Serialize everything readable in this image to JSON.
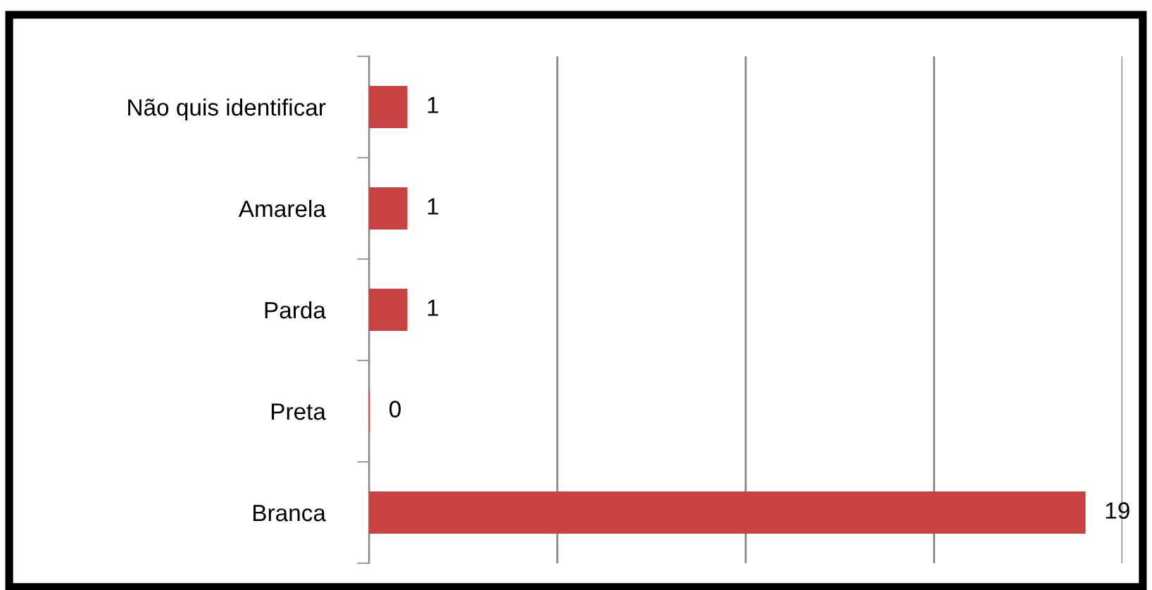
{
  "chart_data": {
    "type": "bar",
    "orientation": "horizontal",
    "categories": [
      "Não quis identificar",
      "Amarela",
      "Parda",
      "Preta",
      "Branca"
    ],
    "values": [
      1,
      1,
      1,
      0,
      19
    ],
    "color": "#c84343",
    "xlim": [
      0,
      20
    ],
    "xticks": [
      {
        "value": 0,
        "label": null
      },
      {
        "value": 5,
        "label": null
      },
      {
        "value": 10,
        "label": null
      },
      {
        "value": 15,
        "label": null
      },
      {
        "value": 20,
        "label": null
      }
    ],
    "tick_labels": "y",
    "grid": "x",
    "data_labels": true,
    "legend": false
  }
}
